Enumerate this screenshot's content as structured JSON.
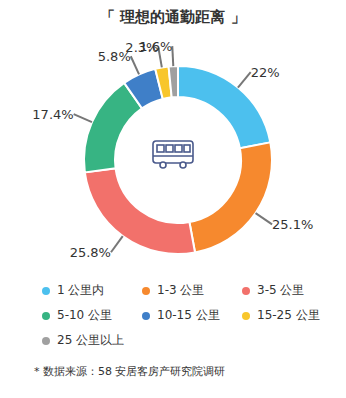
{
  "chart_data": {
    "type": "pie",
    "title": "「 理想的通勤距离 」",
    "categories": [
      "1 公里内",
      "1-3 公里",
      "3-5 公里",
      "5-10 公里",
      "10-15 公里",
      "15-25 公里",
      "25 公里以上"
    ],
    "values": [
      22,
      25.1,
      25.8,
      17.4,
      5.8,
      2.3,
      1.6
    ],
    "value_labels": [
      "22%",
      "25.1%",
      "25.8%",
      "17.4%",
      "5.8%",
      "2.3%",
      "1.6%"
    ],
    "colors": [
      "#4cc0ee",
      "#f6892e",
      "#f2716b",
      "#37b483",
      "#3f7fc8",
      "#f8c62c",
      "#a0a0a0"
    ],
    "data_labels": true,
    "legend": "bottom",
    "annotations": [
      "* 数据来源：58 安居客房产研究院调研"
    ]
  }
}
